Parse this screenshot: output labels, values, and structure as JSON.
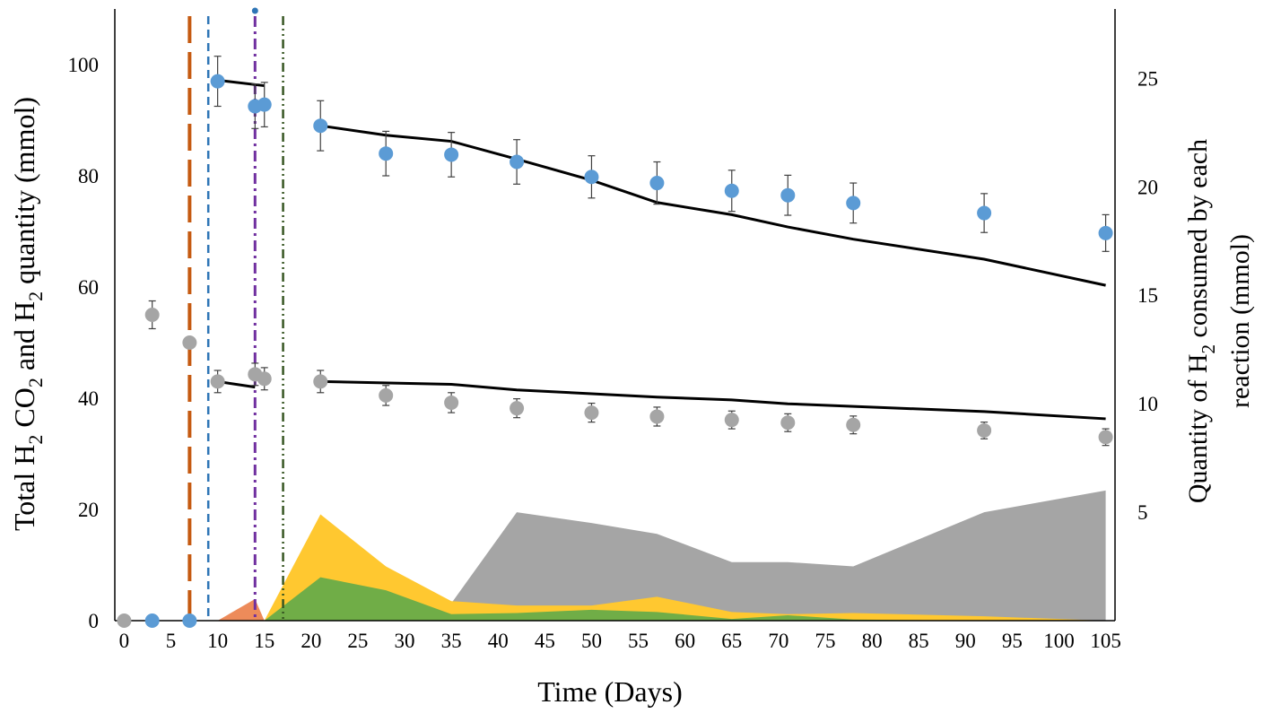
{
  "chart_data": {
    "type": "line",
    "title": "",
    "xlabel": "Time (Days)",
    "ylabel_left": {
      "pre": "Total H",
      "sub1": "2",
      "mid": " CO",
      "sub2": "2",
      "post": " and H",
      "sub3": "2",
      "end": " quantity (mmol)"
    },
    "ylabel_right_line1": {
      "pre": "Quantity of H",
      "sub": "2",
      "post": " consumed by each"
    },
    "ylabel_right_line2": "reaction (mmol)",
    "xlim": [
      -1,
      106
    ],
    "ylim_left": [
      0,
      110
    ],
    "ylim_right": [
      0,
      28.2
    ],
    "x_ticks": [
      "0",
      "5",
      "10",
      "15",
      "20",
      "25",
      "30",
      "35",
      "40",
      "45",
      "50",
      "55",
      "60",
      "65",
      "70",
      "75",
      "80",
      "85",
      "90",
      "95",
      "100",
      "105"
    ],
    "y_ticks_left": [
      "0",
      "20",
      "40",
      "60",
      "80",
      "100"
    ],
    "y_ticks_right": [
      "5",
      "10",
      "15",
      "20",
      "25"
    ],
    "colors": {
      "h2_points": "#5b9bd5",
      "co2_points": "#a5a5a5",
      "model": "#000000",
      "area_gray": "#a5a5a5",
      "area_yellow": "#ffc830",
      "area_green": "#70ad47",
      "area_orange": "#ed8b5a",
      "vline_orange": "#c55a11",
      "vline_blue": "#2e75b6",
      "vline_purple": "#7030a0",
      "vline_green": "#375623",
      "errorbar": "#404040"
    },
    "h2_measured": {
      "x": [
        3,
        7,
        10,
        14,
        15,
        21,
        28,
        35,
        42,
        50,
        57,
        65,
        71,
        78,
        92,
        105
      ],
      "y": [
        0,
        0,
        97,
        92.5,
        92.8,
        89,
        84,
        83.8,
        82.5,
        79.8,
        78.7,
        77.3,
        76.5,
        75.1,
        73.3,
        69.7
      ],
      "err": [
        0,
        0,
        4.5,
        4.0,
        4.0,
        4.5,
        4.0,
        4.0,
        4.0,
        3.8,
        3.8,
        3.7,
        3.6,
        3.6,
        3.5,
        3.3
      ]
    },
    "co2_measured": {
      "x": [
        0,
        3,
        7,
        10,
        14,
        15,
        21,
        28,
        35,
        42,
        50,
        57,
        65,
        71,
        78,
        92,
        105
      ],
      "y": [
        0,
        55,
        50,
        43,
        44.3,
        43.5,
        43,
        40.5,
        39.2,
        38.2,
        37.4,
        36.7,
        36.1,
        35.6,
        35.2,
        34.2,
        33
      ],
      "err": [
        0,
        2.5,
        0,
        2.0,
        2.0,
        2.0,
        2.0,
        1.8,
        1.8,
        1.7,
        1.7,
        1.7,
        1.6,
        1.6,
        1.6,
        1.5,
        1.5
      ]
    },
    "h2_model_segments": [
      {
        "x": [
          10,
          15
        ],
        "y": [
          97.2,
          96.2
        ]
      },
      {
        "x": [
          21,
          28,
          35,
          42,
          50,
          57,
          65,
          71,
          78,
          92,
          105
        ],
        "y": [
          89,
          87.3,
          86.2,
          83,
          79.2,
          75.2,
          73,
          70.8,
          68.6,
          65,
          60.3
        ]
      }
    ],
    "co2_model_segments": [
      {
        "x": [
          10,
          14
        ],
        "y": [
          43,
          42
        ]
      },
      {
        "x": [
          21,
          35,
          42,
          57,
          65,
          71,
          92,
          105
        ],
        "y": [
          43,
          42.5,
          41.5,
          40.2,
          39.7,
          39,
          37.6,
          36.3
        ]
      }
    ],
    "areas_right_axis": [
      {
        "name": "gray",
        "x": [
          35,
          42,
          50,
          57,
          65,
          71,
          78,
          92,
          105
        ],
        "y": [
          0.8,
          5,
          4.5,
          4.0,
          2.7,
          2.7,
          2.5,
          5,
          6
        ]
      },
      {
        "name": "yellow",
        "x": [
          15,
          21,
          28,
          35,
          42,
          50,
          57,
          65,
          71,
          78,
          92,
          105
        ],
        "y": [
          0,
          4.9,
          2.5,
          0.9,
          0.7,
          0.7,
          1.1,
          0.4,
          0.3,
          0.35,
          0.2,
          0
        ]
      },
      {
        "name": "green",
        "x": [
          15,
          21,
          28,
          35,
          42,
          50,
          57,
          65,
          71,
          78,
          92,
          105
        ],
        "y": [
          0,
          2.0,
          1.4,
          0.3,
          0.35,
          0.5,
          0.4,
          0.08,
          0.25,
          0.05,
          0,
          0
        ]
      },
      {
        "name": "orange",
        "x": [
          10,
          14,
          15
        ],
        "y": [
          0,
          1.0,
          0
        ]
      }
    ],
    "vertical_lines": [
      {
        "x": 7,
        "style": "long-dash",
        "color_key": "vline_orange"
      },
      {
        "x": 9,
        "style": "dash",
        "color_key": "vline_blue"
      },
      {
        "x": 14,
        "style": "dash-dot",
        "color_key": "vline_purple"
      },
      {
        "x": 17,
        "style": "dash-dot-dot",
        "color_key": "vline_green"
      }
    ]
  }
}
